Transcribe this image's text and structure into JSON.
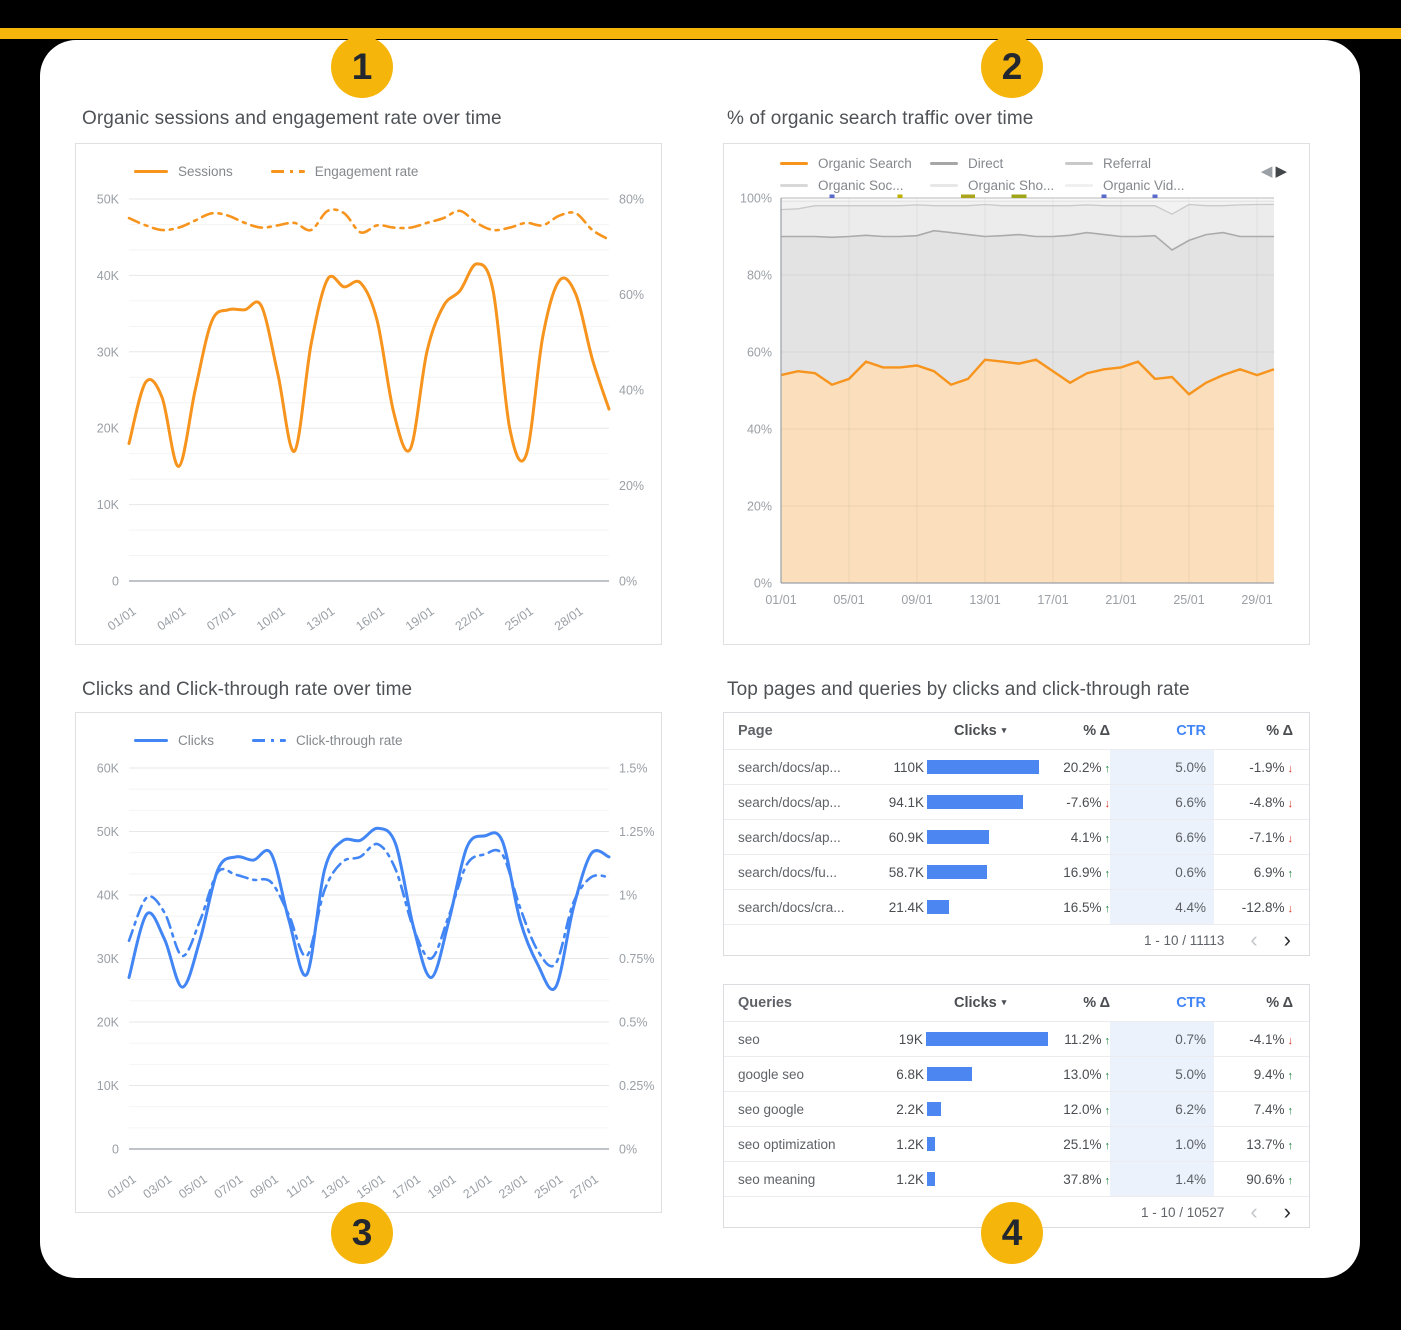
{
  "colors": {
    "background": "#000000",
    "accent_yellow": "#F5B50B",
    "orange": "#F7941D",
    "orange_fill": "#FBDFBC",
    "blue": "#4285F4",
    "green": "#188038",
    "red": "#D93025",
    "band_direct": "#E3E3E3",
    "band_referral": "#ECECEC",
    "band_social": "#F2F2F2",
    "band_top": "#F8F8F8"
  },
  "badges": [
    {
      "label": "1"
    },
    {
      "label": "2"
    },
    {
      "label": "3"
    },
    {
      "label": "4"
    }
  ],
  "panels": {
    "organic_sessions": {
      "title": "Organic sessions and engagement rate over time",
      "legend": [
        {
          "label": "Sessions",
          "style": "solid"
        },
        {
          "label": "Engagement rate",
          "style": "dashdot"
        }
      ],
      "y_left_labels": [
        "50K",
        "40K",
        "30K",
        "20K",
        "10K",
        "0"
      ],
      "y_right_labels": [
        "80%",
        "60%",
        "40%",
        "20%",
        "0%"
      ],
      "x_tick_labels": [
        "01/01",
        "04/01",
        "07/01",
        "10/01",
        "13/01",
        "16/01",
        "19/01",
        "22/01",
        "25/01",
        "28/01"
      ],
      "chart_data": {
        "type": "line",
        "x_start_day": 1,
        "ylim_left": [
          0,
          50
        ],
        "ylim_right": [
          0,
          80
        ],
        "series": [
          {
            "name": "Sessions",
            "axis": "left",
            "unit": "K",
            "values": [
              18,
              26,
              24,
              15,
              25,
              34,
              35.5,
              35.5,
              36,
              27,
              17,
              31,
              39.5,
              38.5,
              39,
              34,
              22,
              17.3,
              30,
              36,
              38,
              41.5,
              38,
              20,
              16.5,
              32,
              39.3,
              37.5,
              29,
              22.5
            ]
          },
          {
            "name": "Engagement rate",
            "axis": "right",
            "unit": "%",
            "values": [
              76,
              74.5,
              73.5,
              74,
              75.5,
              77,
              76.5,
              75,
              74,
              74.5,
              75,
              73.5,
              77.5,
              77,
              73,
              74.5,
              74,
              74,
              75,
              76,
              77.5,
              75,
              73.5,
              74,
              75,
              74.5,
              76.5,
              77,
              73.5,
              71.5
            ]
          }
        ]
      }
    },
    "organic_traffic": {
      "title": "% of organic search traffic over time",
      "legend": [
        {
          "label": "Organic Search",
          "color": "#F7941D"
        },
        {
          "label": "Direct",
          "color": "#A6A6A6"
        },
        {
          "label": "Referral",
          "color": "#C9C9C9"
        },
        {
          "label": "Organic Soc...",
          "color": "#D8D8D8"
        },
        {
          "label": "Organic Sho...",
          "color": "#E7E7E7"
        },
        {
          "label": "Organic Vid...",
          "color": "#F0F0F0"
        }
      ],
      "nav": {
        "prev": "◀",
        "next": "▶"
      },
      "y_labels": [
        "100%",
        "80%",
        "60%",
        "40%",
        "20%",
        "0%"
      ],
      "x_tick_labels": [
        "01/01",
        "05/01",
        "09/01",
        "13/01",
        "17/01",
        "21/01",
        "25/01",
        "29/01"
      ],
      "chart_data": {
        "type": "area",
        "stacked_percent": true,
        "ylim": [
          0,
          100
        ],
        "series": [
          {
            "name": "Organic Search boundary",
            "values": [
              54,
              55,
              54.5,
              51.5,
              53,
              57.5,
              56,
              56,
              56.5,
              55,
              51.5,
              53,
              58,
              57.5,
              57,
              58,
              55,
              52,
              54.5,
              55.5,
              56,
              57.5,
              53,
              53.5,
              49,
              52,
              54,
              55.5,
              54,
              55.5
            ]
          },
          {
            "name": "Direct boundary",
            "values": [
              90,
              90,
              90,
              89.8,
              90,
              90.3,
              90,
              90,
              90.2,
              91.5,
              91,
              90.5,
              90,
              90.2,
              90.5,
              90,
              90,
              90.3,
              91,
              90.5,
              90,
              90,
              90.2,
              86.5,
              89,
              90.5,
              91,
              90,
              90,
              90
            ]
          },
          {
            "name": "Referral boundary",
            "values": [
              97,
              97.2,
              98,
              98,
              98,
              98,
              98,
              98,
              98.2,
              98,
              98,
              98,
              98.3,
              98,
              98,
              98,
              98,
              98,
              98.2,
              98,
              98,
              98,
              98,
              95.8,
              98.3,
              98,
              98,
              98.2,
              98.3,
              98.3
            ]
          }
        ],
        "social_boundary": 99.2,
        "markers": [
          {
            "day": 4,
            "color": "#5A6ACB",
            "width": 5
          },
          {
            "day": 8,
            "color": "#BFB100",
            "width": 5
          },
          {
            "day": 12,
            "color": "#ABA41C",
            "width": 14
          },
          {
            "day": 15,
            "color": "#9FA519",
            "width": 15
          },
          {
            "day": 20,
            "color": "#5A6ACB",
            "width": 5
          },
          {
            "day": 23,
            "color": "#5A6ACB",
            "width": 5
          }
        ]
      }
    },
    "clicks_ctr": {
      "title": "Clicks and Click-through rate over time",
      "legend": [
        {
          "label": "Clicks",
          "style": "solid"
        },
        {
          "label": "Click-through rate",
          "style": "dashdot"
        }
      ],
      "y_left_labels": [
        "60K",
        "50K",
        "40K",
        "30K",
        "20K",
        "10K",
        "0"
      ],
      "y_right_labels": [
        "1.5%",
        "1.25%",
        "1%",
        "0.75%",
        "0.5%",
        "0.25%",
        "0%"
      ],
      "x_tick_labels": [
        "01/01",
        "03/01",
        "05/01",
        "07/01",
        "09/01",
        "11/01",
        "13/01",
        "15/01",
        "17/01",
        "19/01",
        "21/01",
        "23/01",
        "25/01",
        "27/01"
      ],
      "chart_data": {
        "type": "line",
        "x_start_day": 1,
        "ylim_left": [
          0,
          60
        ],
        "ylim_right": [
          0,
          1.5
        ],
        "series": [
          {
            "name": "Clicks",
            "axis": "left",
            "unit": "K",
            "values": [
              27,
              37,
              33,
              25.5,
              33,
              44,
              46,
              45.5,
              46.5,
              36,
              27.5,
              44,
              48.5,
              48.6,
              50.5,
              48,
              35,
              27,
              36,
              47.5,
              49.3,
              48.5,
              36,
              29,
              25.5,
              38,
              46.5,
              46
            ]
          },
          {
            "name": "Click-through rate",
            "axis": "right",
            "unit": "%",
            "values": [
              0.82,
              0.99,
              0.93,
              0.76,
              0.9,
              1.09,
              1.08,
              1.06,
              1.05,
              0.92,
              0.76,
              1.02,
              1.13,
              1.15,
              1.2,
              1.1,
              0.87,
              0.75,
              0.92,
              1.12,
              1.16,
              1.16,
              0.95,
              0.78,
              0.73,
              0.97,
              1.07,
              1.07
            ]
          }
        ]
      }
    },
    "top_tables": {
      "title": "Top pages and queries by clicks and click-through rate",
      "tables": [
        {
          "columns": [
            "Page",
            "Clicks",
            "% Δ",
            "CTR",
            "% Δ"
          ],
          "sort_caret": "▾",
          "rows": [
            {
              "name": "search/docs/ap...",
              "clicks_label": "110K",
              "clicks": 110000,
              "delta": "20.2%",
              "delta_dir": "up",
              "ctr": "5.0%",
              "delta2": "-1.9%",
              "delta2_dir": "down"
            },
            {
              "name": "search/docs/ap...",
              "clicks_label": "94.1K",
              "clicks": 94100,
              "delta": "-7.6%",
              "delta_dir": "down",
              "ctr": "6.6%",
              "delta2": "-4.8%",
              "delta2_dir": "down"
            },
            {
              "name": "search/docs/ap...",
              "clicks_label": "60.9K",
              "clicks": 60900,
              "delta": "4.1%",
              "delta_dir": "up",
              "ctr": "6.6%",
              "delta2": "-7.1%",
              "delta2_dir": "down"
            },
            {
              "name": "search/docs/fu...",
              "clicks_label": "58.7K",
              "clicks": 58700,
              "delta": "16.9%",
              "delta_dir": "up",
              "ctr": "0.6%",
              "delta2": "6.9%",
              "delta2_dir": "up"
            },
            {
              "name": "search/docs/cra...",
              "clicks_label": "21.4K",
              "clicks": 21400,
              "delta": "16.5%",
              "delta_dir": "up",
              "ctr": "4.4%",
              "delta2": "-12.8%",
              "delta2_dir": "down"
            }
          ],
          "pagination": "1 - 10 / 11113",
          "prev_glyph": "‹",
          "next_glyph": "›"
        },
        {
          "columns": [
            "Queries",
            "Clicks",
            "% Δ",
            "CTR",
            "% Δ"
          ],
          "sort_caret": "▾",
          "rows": [
            {
              "name": "seo",
              "clicks_label": "19K",
              "clicks": 19000,
              "delta": "11.2%",
              "delta_dir": "up",
              "ctr": "0.7%",
              "delta2": "-4.1%",
              "delta2_dir": "down"
            },
            {
              "name": "google seo",
              "clicks_label": "6.8K",
              "clicks": 6800,
              "delta": "13.0%",
              "delta_dir": "up",
              "ctr": "5.0%",
              "delta2": "9.4%",
              "delta2_dir": "up"
            },
            {
              "name": "seo google",
              "clicks_label": "2.2K",
              "clicks": 2200,
              "delta": "12.0%",
              "delta_dir": "up",
              "ctr": "6.2%",
              "delta2": "7.4%",
              "delta2_dir": "up"
            },
            {
              "name": "seo optimization",
              "clicks_label": "1.2K",
              "clicks": 1200,
              "delta": "25.1%",
              "delta_dir": "up",
              "ctr": "1.0%",
              "delta2": "13.7%",
              "delta2_dir": "up"
            },
            {
              "name": "seo meaning",
              "clicks_label": "1.2K",
              "clicks": 1200,
              "delta": "37.8%",
              "delta_dir": "up",
              "ctr": "1.4%",
              "delta2": "90.6%",
              "delta2_dir": "up"
            }
          ],
          "pagination": "1 - 10 / 10527",
          "prev_glyph": "‹",
          "next_glyph": "›"
        }
      ]
    }
  }
}
